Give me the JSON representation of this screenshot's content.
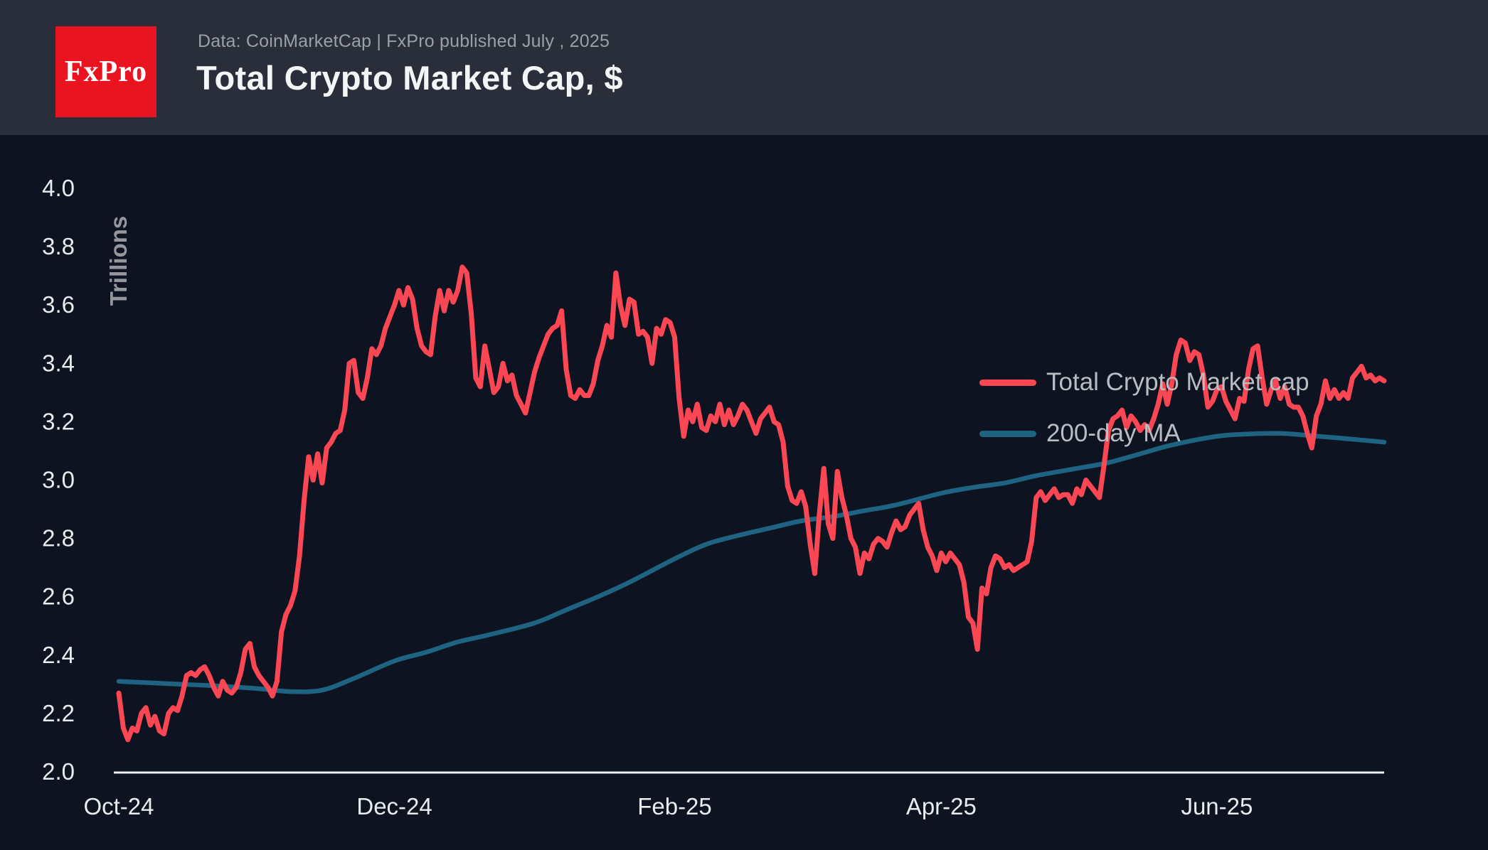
{
  "header": {
    "logo_text": "FxPro",
    "subtitle": "Data: CoinMarketCap | FxPro published July , 2025",
    "title": "Total Crypto Market Cap, $"
  },
  "colors": {
    "header_bg": "#2a2e3a",
    "chart_bg": "#0d1321",
    "logo_bg": "#e91420",
    "accent_red": "#fb4753",
    "ma_teal": "#1f6383",
    "axis_line": "#edeff2",
    "axis_text": "#e9ecef",
    "muted_text": "#95979c",
    "legend_text": "#b9bcc2",
    "title_text": "#f4f5f6",
    "subtitle_text": "#9ba0a8"
  },
  "chart_data": {
    "type": "line",
    "title": "Total Crypto Market Cap, $",
    "xlabel": "",
    "ylabel": "Trillions",
    "unit": "trillions USD",
    "ylim": [
      2.0,
      4.0
    ],
    "grid": false,
    "legend_position": "upper right",
    "start_date": "2024-10-01",
    "end_date": "2025-07-08",
    "y_ticks": [
      {
        "label": "2.0",
        "value": 2.0
      },
      {
        "label": "2.2",
        "value": 2.2
      },
      {
        "label": "2.4",
        "value": 2.4
      },
      {
        "label": "2.6",
        "value": 2.6
      },
      {
        "label": "2.8",
        "value": 2.8
      },
      {
        "label": "3.0",
        "value": 3.0
      },
      {
        "label": "3.2",
        "value": 3.2
      },
      {
        "label": "3.4",
        "value": 3.4
      },
      {
        "label": "3.6",
        "value": 3.6
      },
      {
        "label": "3.8",
        "value": 3.8
      },
      {
        "label": "4.0",
        "value": 4.0
      }
    ],
    "x_ticks": [
      {
        "label": "Oct-24",
        "day": 0
      },
      {
        "label": "Dec-24",
        "day": 61
      },
      {
        "label": "Feb-25",
        "day": 123
      },
      {
        "label": "Apr-25",
        "day": 182
      },
      {
        "label": "Jun-25",
        "day": 243
      }
    ],
    "series": [
      {
        "name": "Total Crypto Market cap",
        "color_key": "accent_red",
        "sampling": "daily from 2024-10-01",
        "daily_values": [
          2.27,
          2.15,
          2.11,
          2.15,
          2.14,
          2.2,
          2.22,
          2.16,
          2.19,
          2.14,
          2.13,
          2.2,
          2.22,
          2.21,
          2.26,
          2.33,
          2.34,
          2.33,
          2.35,
          2.36,
          2.33,
          2.29,
          2.26,
          2.31,
          2.28,
          2.27,
          2.29,
          2.34,
          2.42,
          2.44,
          2.36,
          2.33,
          2.31,
          2.29,
          2.26,
          2.31,
          2.48,
          2.54,
          2.57,
          2.62,
          2.74,
          2.93,
          3.08,
          3.0,
          3.09,
          2.99,
          3.11,
          3.13,
          3.16,
          3.17,
          3.24,
          3.4,
          3.41,
          3.3,
          3.28,
          3.35,
          3.45,
          3.43,
          3.46,
          3.52,
          3.56,
          3.6,
          3.65,
          3.6,
          3.66,
          3.62,
          3.52,
          3.46,
          3.44,
          3.43,
          3.56,
          3.65,
          3.58,
          3.65,
          3.61,
          3.65,
          3.73,
          3.71,
          3.57,
          3.35,
          3.32,
          3.46,
          3.38,
          3.3,
          3.32,
          3.4,
          3.34,
          3.36,
          3.29,
          3.26,
          3.23,
          3.3,
          3.37,
          3.42,
          3.46,
          3.5,
          3.52,
          3.53,
          3.58,
          3.38,
          3.29,
          3.28,
          3.31,
          3.29,
          3.29,
          3.33,
          3.41,
          3.46,
          3.53,
          3.49,
          3.71,
          3.6,
          3.53,
          3.62,
          3.61,
          3.5,
          3.51,
          3.49,
          3.4,
          3.52,
          3.5,
          3.55,
          3.54,
          3.49,
          3.28,
          3.15,
          3.24,
          3.2,
          3.26,
          3.18,
          3.17,
          3.22,
          3.2,
          3.26,
          3.19,
          3.24,
          3.19,
          3.22,
          3.26,
          3.24,
          3.2,
          3.16,
          3.21,
          3.23,
          3.25,
          3.2,
          3.19,
          3.13,
          2.98,
          2.93,
          2.92,
          2.96,
          2.91,
          2.78,
          2.68,
          2.88,
          3.04,
          2.85,
          2.8,
          3.03,
          2.94,
          2.88,
          2.8,
          2.77,
          2.68,
          2.75,
          2.73,
          2.78,
          2.8,
          2.79,
          2.77,
          2.82,
          2.86,
          2.83,
          2.84,
          2.88,
          2.9,
          2.92,
          2.83,
          2.77,
          2.74,
          2.69,
          2.75,
          2.72,
          2.75,
          2.73,
          2.71,
          2.65,
          2.53,
          2.51,
          2.42,
          2.63,
          2.61,
          2.7,
          2.74,
          2.73,
          2.7,
          2.71,
          2.69,
          2.7,
          2.71,
          2.72,
          2.79,
          2.94,
          2.96,
          2.93,
          2.95,
          2.97,
          2.94,
          2.95,
          2.95,
          2.92,
          2.97,
          2.95,
          3.0,
          2.98,
          2.96,
          2.94,
          3.05,
          3.17,
          3.21,
          3.22,
          3.24,
          3.18,
          3.22,
          3.2,
          3.17,
          3.19,
          3.17,
          3.21,
          3.26,
          3.33,
          3.26,
          3.33,
          3.43,
          3.48,
          3.47,
          3.41,
          3.44,
          3.43,
          3.36,
          3.25,
          3.27,
          3.31,
          3.32,
          3.27,
          3.24,
          3.21,
          3.28,
          3.27,
          3.38,
          3.45,
          3.46,
          3.35,
          3.26,
          3.31,
          3.34,
          3.28,
          3.32,
          3.26,
          3.25,
          3.25,
          3.22,
          3.16,
          3.11,
          3.22,
          3.26,
          3.34,
          3.28,
          3.31,
          3.28,
          3.3,
          3.28,
          3.35,
          3.37,
          3.39,
          3.35,
          3.36,
          3.34,
          3.35,
          3.34
        ]
      },
      {
        "name": "200-day MA",
        "color_key": "ma_teal",
        "sampling": "anchor points [day_offset, value]",
        "points": [
          [
            0,
            2.31
          ],
          [
            7,
            2.305
          ],
          [
            14,
            2.3
          ],
          [
            21,
            2.295
          ],
          [
            31,
            2.285
          ],
          [
            38,
            2.275
          ],
          [
            45,
            2.28
          ],
          [
            52,
            2.32
          ],
          [
            61,
            2.38
          ],
          [
            68,
            2.41
          ],
          [
            75,
            2.445
          ],
          [
            82,
            2.47
          ],
          [
            92,
            2.51
          ],
          [
            99,
            2.555
          ],
          [
            106,
            2.6
          ],
          [
            113,
            2.65
          ],
          [
            123,
            2.73
          ],
          [
            130,
            2.78
          ],
          [
            137,
            2.81
          ],
          [
            144,
            2.835
          ],
          [
            151,
            2.86
          ],
          [
            158,
            2.875
          ],
          [
            165,
            2.895
          ],
          [
            172,
            2.915
          ],
          [
            182,
            2.955
          ],
          [
            189,
            2.975
          ],
          [
            196,
            2.99
          ],
          [
            203,
            3.015
          ],
          [
            212,
            3.04
          ],
          [
            219,
            3.06
          ],
          [
            226,
            3.09
          ],
          [
            233,
            3.12
          ],
          [
            243,
            3.15
          ],
          [
            250,
            3.158
          ],
          [
            257,
            3.16
          ],
          [
            264,
            3.152
          ],
          [
            273,
            3.14
          ],
          [
            280,
            3.13
          ]
        ]
      }
    ]
  }
}
